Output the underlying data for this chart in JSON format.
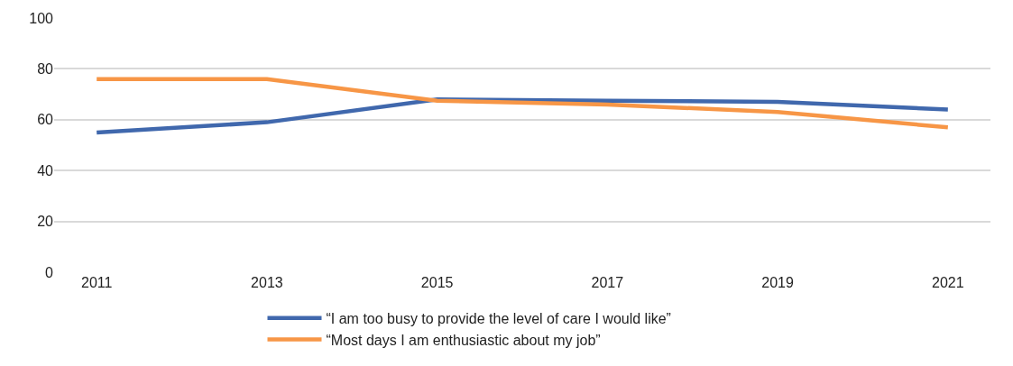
{
  "chart_data": {
    "type": "line",
    "categories": [
      "2011",
      "2013",
      "2015",
      "2017",
      "2019",
      "2021"
    ],
    "series": [
      {
        "name": "“I am too busy to provide the level of care I would like”",
        "color": "#4068ad",
        "values": [
          55,
          59,
          68,
          67.5,
          67,
          64
        ]
      },
      {
        "name": "“Most days I am enthusiastic about my job”",
        "color": "#f79646",
        "values": [
          76,
          76,
          67.5,
          66,
          63,
          57
        ]
      }
    ],
    "ylim": [
      0,
      100
    ],
    "yticks": [
      0,
      20,
      40,
      60,
      80,
      100
    ],
    "grid": "y",
    "legend": "bottom",
    "marker": "none",
    "line_style": "solid"
  }
}
